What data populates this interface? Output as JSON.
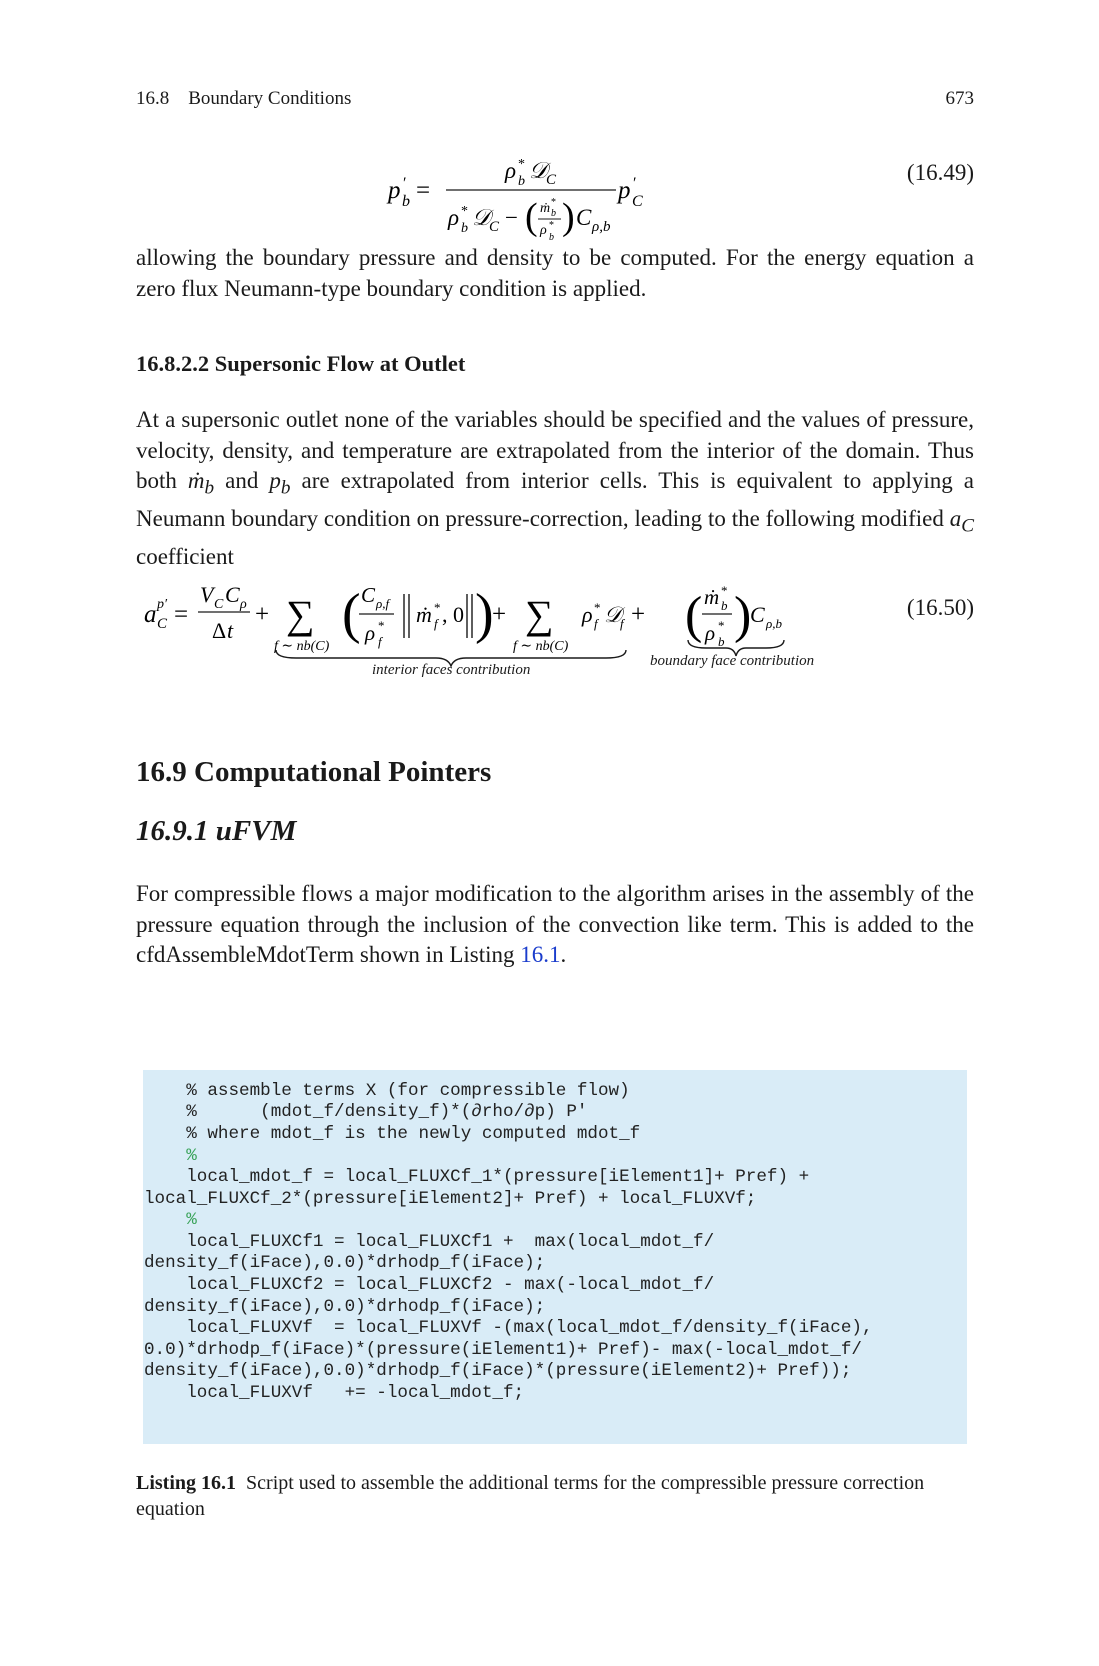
{
  "header": {
    "section": "16.8 Boundary Conditions",
    "page_number": "673"
  },
  "equation_1649": {
    "number": "(16.49)"
  },
  "para1": "allowing the boundary pressure and density to be computed. For the energy equation a zero flux Neumann-type boundary condition is applied.",
  "subsubsection": {
    "title": "16.8.2.2  Supersonic Flow at Outlet"
  },
  "para2": {
    "part1": "At a supersonic outlet none of the variables should be specified and the values of pressure, velocity, density, and temperature are extrapolated from the interior of the domain. Thus both ",
    "mdot": "ṁ",
    "sub_b1": "b",
    "and": " and ",
    "p": "p",
    "sub_b2": "b",
    "part2": " are extrapolated from interior cells. This is equivalent to applying a Neumann boundary condition on pressure-correction, leading to the following modified ",
    "aC": "a",
    "sub_C": "C",
    "part3": " coefficient"
  },
  "equation_1650": {
    "number": "(16.50)",
    "label_interior": "interior faces contribution",
    "label_boundary": "boundary face contribution"
  },
  "section": {
    "title": "16.9  Computational Pointers"
  },
  "subsection": {
    "title": "16.9.1  uFVM"
  },
  "para3": {
    "text": "For compressible flows a major modification to the algorithm arises in the assembly of the pressure equation through the inclusion of the convection like term. This is added to the cfdAssembleMdotTerm shown in Listing ",
    "link": "16.1",
    "end": "."
  },
  "code": {
    "lines": [
      "    % assemble terms X (for compressible flow)",
      "    %      (mdot_f/density_f)*(∂rho/∂p) P'",
      "    % where mdot_f is the newly computed mdot_f",
      "    %",
      "    local_mdot_f = local_FLUXCf_1*(pressure[iElement1]+ Pref) +",
      "local_FLUXCf_2*(pressure[iElement2]+ Pref) + local_FLUXVf;",
      "    %",
      "    local_FLUXCf1 = local_FLUXCf1 +  max(local_mdot_f/",
      "density_f(iFace),0.0)*drhodp_f(iFace);",
      "    local_FLUXCf2 = local_FLUXCf2 - max(-local_mdot_f/",
      "density_f(iFace),0.0)*drhodp_f(iFace);",
      "    local_FLUXVf  = local_FLUXVf -(max(local_mdot_f/density_f(iFace),",
      "0.0)*drhodp_f(iFace)*(pressure(iElement1)+ Pref)- max(-local_mdot_f/",
      "density_f(iFace),0.0)*drhodp_f(iFace)*(pressure(iElement2)+ Pref));",
      "    local_FLUXVf   += -local_mdot_f;"
    ],
    "comment_color": "#3aa35a",
    "background": "#d9ecf7"
  },
  "caption": {
    "label": "Listing 16.1",
    "text": "Script used to assemble the additional terms for the compressible pressure correction equation"
  }
}
